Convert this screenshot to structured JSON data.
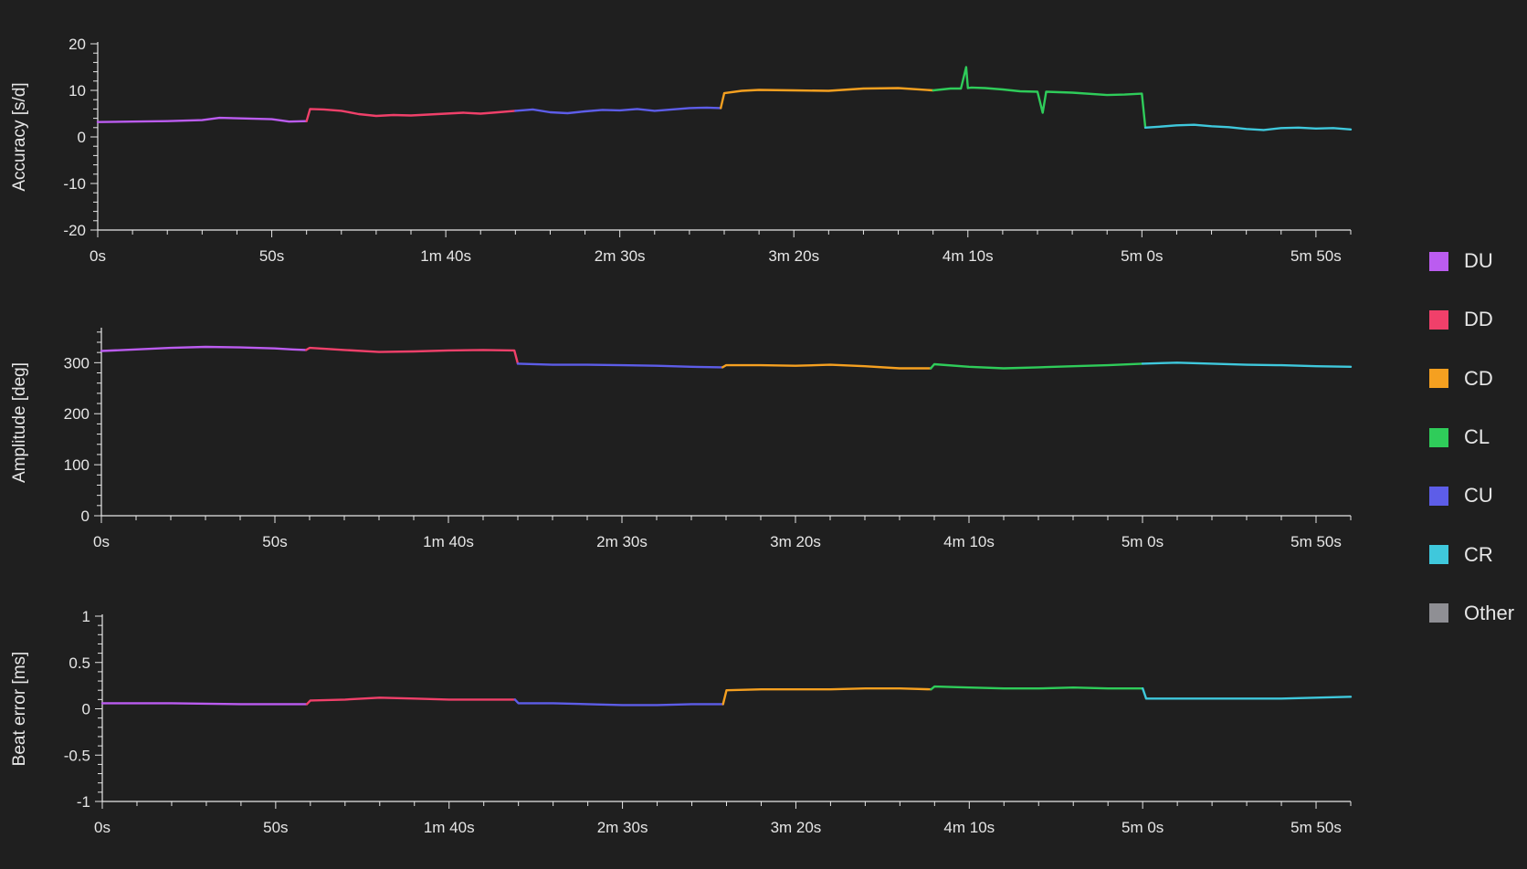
{
  "legend": [
    {
      "name": "DU",
      "color": "#bb5cf0"
    },
    {
      "name": "DD",
      "color": "#f0406a"
    },
    {
      "name": "CD",
      "color": "#f5a020"
    },
    {
      "name": "CL",
      "color": "#2fcc5a"
    },
    {
      "name": "CU",
      "color": "#5d5de8"
    },
    {
      "name": "CR",
      "color": "#3fc8dc"
    },
    {
      "name": "Other",
      "color": "#8f8f94"
    }
  ],
  "chart_data": [
    {
      "type": "line",
      "ylabel": "Accuracy [s/d]",
      "xlabel": "",
      "ylim": [
        -20,
        20
      ],
      "xlim": [
        0,
        360
      ],
      "yticks": [
        -20,
        -10,
        0,
        10,
        20
      ],
      "xtick_labels": [
        "0s",
        "50s",
        "1m 40s",
        "2m 30s",
        "3m 20s",
        "4m 10s",
        "5m 0s",
        "5m 50s"
      ],
      "series": [
        {
          "name": "DU",
          "x": [
            0,
            10,
            20,
            30,
            35,
            40,
            50,
            55,
            60
          ],
          "y": [
            3.2,
            3.3,
            3.4,
            3.6,
            4.1,
            4.0,
            3.8,
            3.3,
            3.4
          ]
        },
        {
          "name": "DD",
          "x": [
            60,
            61,
            65,
            70,
            75,
            80,
            85,
            90,
            95,
            100,
            105,
            110,
            115,
            120
          ],
          "y": [
            3.4,
            6.0,
            5.9,
            5.6,
            4.9,
            4.5,
            4.7,
            4.6,
            4.8,
            5.0,
            5.2,
            5.0,
            5.3,
            5.6
          ]
        },
        {
          "name": "CU",
          "x": [
            120,
            125,
            130,
            135,
            140,
            145,
            150,
            155,
            160,
            165,
            170,
            175,
            179
          ],
          "y": [
            5.6,
            5.9,
            5.3,
            5.1,
            5.5,
            5.8,
            5.7,
            6.0,
            5.6,
            5.9,
            6.2,
            6.3,
            6.2
          ]
        },
        {
          "name": "CD",
          "x": [
            179,
            180,
            185,
            190,
            200,
            210,
            220,
            230,
            240
          ],
          "y": [
            6.2,
            9.4,
            9.9,
            10.1,
            10.0,
            9.9,
            10.4,
            10.5,
            10.0
          ]
        },
        {
          "name": "CL",
          "x": [
            240,
            245,
            248,
            249.5,
            250,
            251,
            255,
            260,
            265,
            270,
            271.5,
            272.5,
            280,
            290,
            295,
            300,
            301
          ],
          "y": [
            10.0,
            10.4,
            10.4,
            15.0,
            10.5,
            10.6,
            10.5,
            10.2,
            9.8,
            9.7,
            5.2,
            9.7,
            9.5,
            9.0,
            9.1,
            9.3,
            2.0
          ]
        },
        {
          "name": "CR",
          "x": [
            301,
            305,
            310,
            315,
            320,
            325,
            330,
            335,
            340,
            345,
            350,
            355,
            360
          ],
          "y": [
            2.0,
            2.2,
            2.5,
            2.6,
            2.3,
            2.1,
            1.7,
            1.5,
            1.9,
            2.0,
            1.8,
            1.9,
            1.6
          ]
        }
      ]
    },
    {
      "type": "line",
      "ylabel": "Amplitude [deg]",
      "xlabel": "",
      "ylim": [
        0,
        365
      ],
      "xlim": [
        0,
        360
      ],
      "yticks": [
        0,
        100,
        200,
        300
      ],
      "xtick_labels": [
        "0s",
        "50s",
        "1m 40s",
        "2m 30s",
        "3m 20s",
        "4m 10s",
        "5m 0s",
        "5m 50s"
      ],
      "series": [
        {
          "name": "DU",
          "x": [
            0,
            10,
            20,
            30,
            40,
            50,
            55,
            59
          ],
          "y": [
            323,
            326,
            329,
            331,
            330,
            328,
            326,
            325
          ]
        },
        {
          "name": "DD",
          "x": [
            59,
            60,
            70,
            80,
            90,
            100,
            110,
            119,
            120
          ],
          "y": [
            325,
            329,
            325,
            321,
            322,
            324,
            325,
            324,
            298
          ]
        },
        {
          "name": "CU",
          "x": [
            120,
            130,
            140,
            150,
            160,
            170,
            179
          ],
          "y": [
            298,
            296,
            296,
            295,
            294,
            292,
            291
          ]
        },
        {
          "name": "CD",
          "x": [
            179,
            180,
            190,
            200,
            210,
            220,
            230,
            239
          ],
          "y": [
            291,
            295,
            295,
            294,
            296,
            293,
            289,
            289
          ]
        },
        {
          "name": "CL",
          "x": [
            239,
            240,
            250,
            260,
            270,
            280,
            290,
            300
          ],
          "y": [
            289,
            297,
            292,
            289,
            291,
            293,
            295,
            298
          ]
        },
        {
          "name": "CR",
          "x": [
            300,
            310,
            320,
            330,
            340,
            350,
            360
          ],
          "y": [
            298,
            300,
            298,
            296,
            295,
            293,
            292
          ]
        }
      ]
    },
    {
      "type": "line",
      "ylabel": "Beat error [ms]",
      "xlabel": "",
      "ylim": [
        -1,
        1
      ],
      "xlim": [
        0,
        360
      ],
      "yticks": [
        -1,
        -0.5,
        0,
        0.5,
        1
      ],
      "xtick_labels": [
        "0s",
        "50s",
        "1m 40s",
        "2m 30s",
        "3m 20s",
        "4m 10s",
        "5m 0s",
        "5m 50s"
      ],
      "series": [
        {
          "name": "DU",
          "x": [
            0,
            20,
            40,
            59
          ],
          "y": [
            0.06,
            0.06,
            0.05,
            0.05
          ]
        },
        {
          "name": "DD",
          "x": [
            59,
            60,
            70,
            80,
            90,
            100,
            110,
            119
          ],
          "y": [
            0.05,
            0.09,
            0.1,
            0.12,
            0.11,
            0.1,
            0.1,
            0.1
          ]
        },
        {
          "name": "CU",
          "x": [
            119,
            120,
            130,
            140,
            150,
            160,
            170,
            179
          ],
          "y": [
            0.1,
            0.06,
            0.06,
            0.05,
            0.04,
            0.04,
            0.05,
            0.05
          ]
        },
        {
          "name": "CD",
          "x": [
            179,
            180,
            190,
            200,
            210,
            220,
            230,
            239
          ],
          "y": [
            0.05,
            0.2,
            0.21,
            0.21,
            0.21,
            0.22,
            0.22,
            0.21
          ]
        },
        {
          "name": "CL",
          "x": [
            239,
            240,
            250,
            260,
            270,
            280,
            290,
            300
          ],
          "y": [
            0.21,
            0.24,
            0.23,
            0.22,
            0.22,
            0.23,
            0.22,
            0.22
          ]
        },
        {
          "name": "CR",
          "x": [
            300,
            301,
            310,
            320,
            330,
            340,
            350,
            360
          ],
          "y": [
            0.22,
            0.11,
            0.11,
            0.11,
            0.11,
            0.11,
            0.12,
            0.13
          ]
        }
      ]
    }
  ]
}
